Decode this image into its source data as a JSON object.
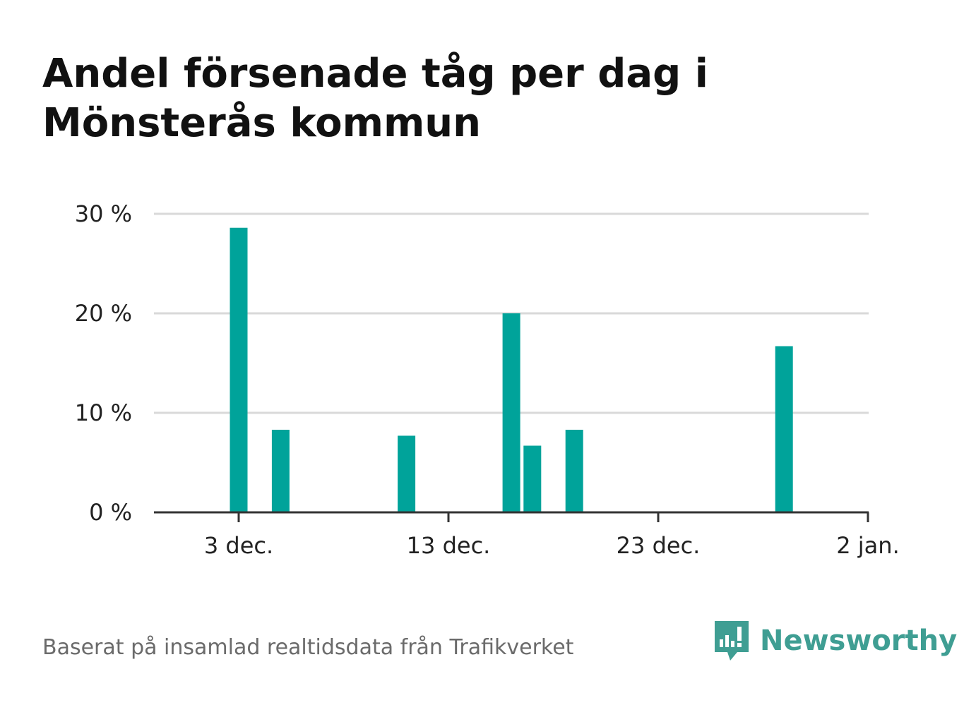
{
  "title": "Andel försenade tåg per dag i Mönsterås kommun",
  "source": "Baserat på insamlad realtidsdata från Trafikverket",
  "brand": {
    "name": "Newsworthy",
    "icon": "newsworthy-logo-icon"
  },
  "colors": {
    "bar": "#00a39a",
    "grid": "#d9d9d9",
    "axis": "#333333",
    "brand": "#3f9e93"
  },
  "chart_data": {
    "type": "bar",
    "x_unit": "date",
    "x_range": [
      "2022-11-29",
      "2023-01-02"
    ],
    "y_range": [
      0,
      30
    ],
    "grid": true,
    "y_ticks": [
      {
        "value": 0,
        "label": "0 %"
      },
      {
        "value": 10,
        "label": "10 %"
      },
      {
        "value": 20,
        "label": "20 %"
      },
      {
        "value": 30,
        "label": "30 %"
      }
    ],
    "x_ticks": [
      {
        "date": "2022-12-03",
        "label": "3 dec."
      },
      {
        "date": "2022-12-13",
        "label": "13 dec."
      },
      {
        "date": "2022-12-23",
        "label": "23 dec."
      },
      {
        "date": "2023-01-02",
        "label": "2 jan."
      }
    ],
    "bars": [
      {
        "date": "2022-12-03",
        "value": 28.6
      },
      {
        "date": "2022-12-05",
        "value": 8.3
      },
      {
        "date": "2022-12-11",
        "value": 7.7
      },
      {
        "date": "2022-12-16",
        "value": 20.0
      },
      {
        "date": "2022-12-17",
        "value": 6.7
      },
      {
        "date": "2022-12-19",
        "value": 8.3
      },
      {
        "date": "2022-12-29",
        "value": 16.7
      }
    ]
  }
}
